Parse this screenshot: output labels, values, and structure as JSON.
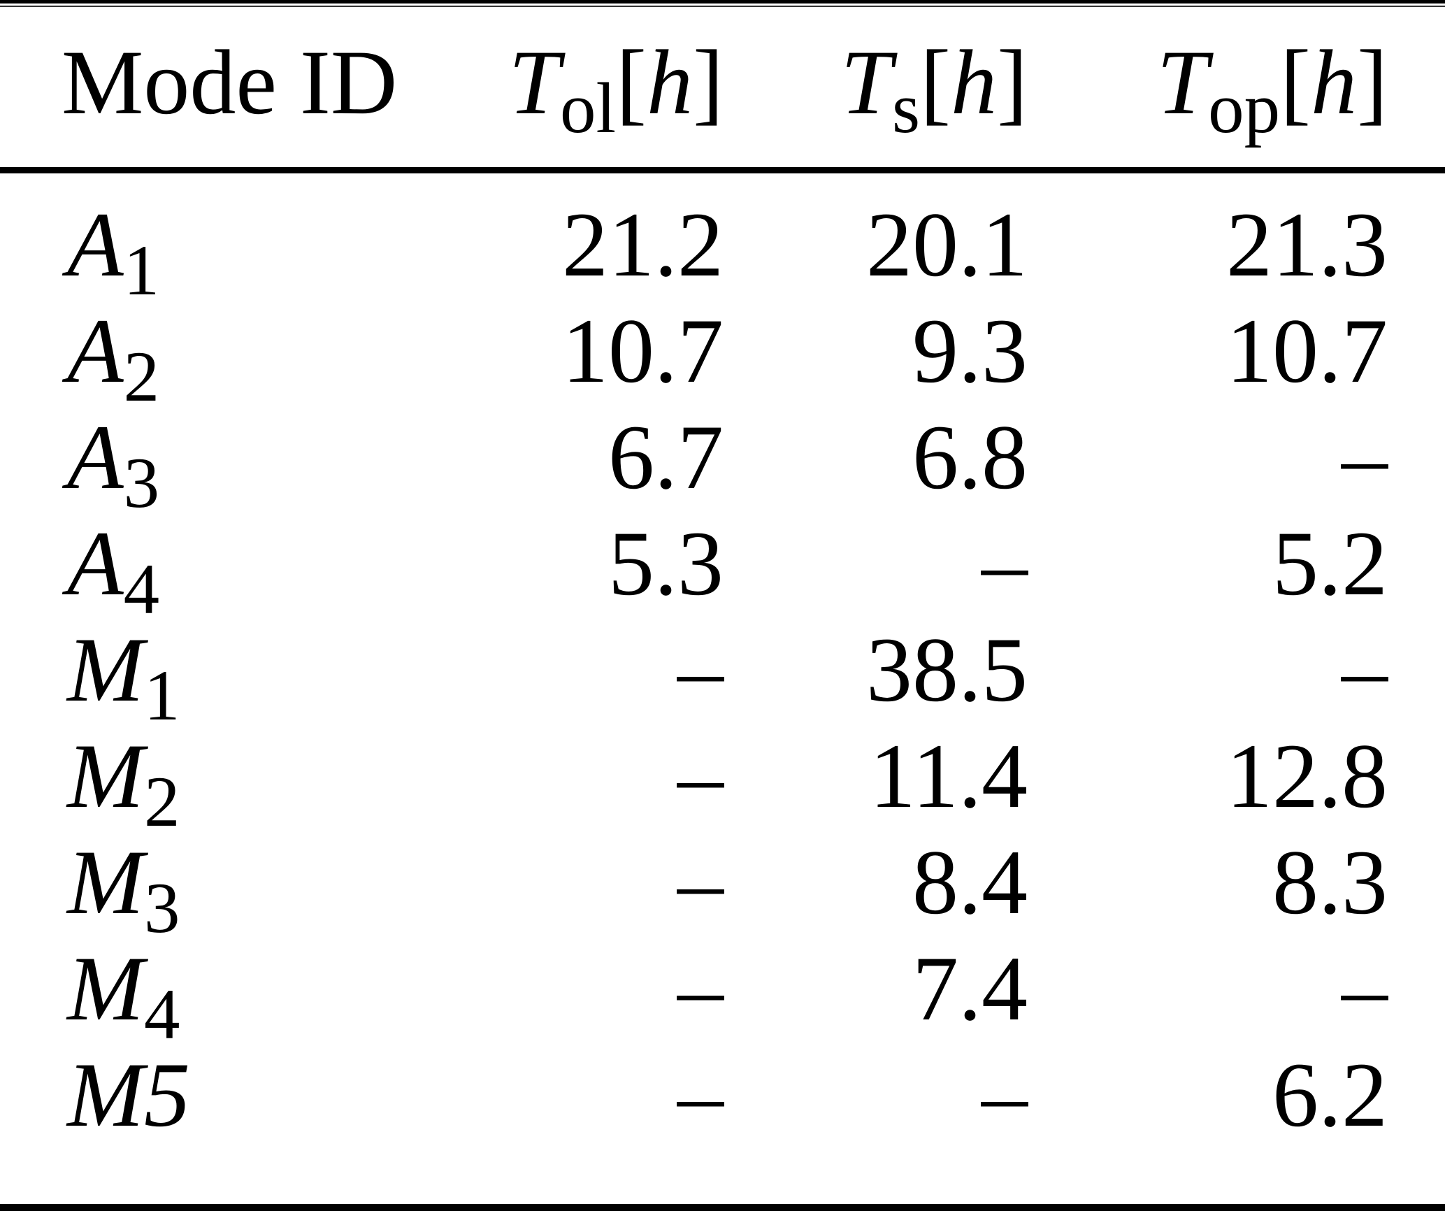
{
  "table": {
    "header": {
      "mode_id": "Mode ID",
      "columns": [
        {
          "base": "T",
          "sub": "ol",
          "open": "[",
          "unit": "h",
          "close": "]"
        },
        {
          "base": "T",
          "sub": "s",
          "open": "[",
          "unit": "h",
          "close": "]"
        },
        {
          "base": "T",
          "sub": "op",
          "open": "[",
          "unit": "h",
          "close": "]"
        }
      ]
    },
    "rows": [
      {
        "label": {
          "base": "A",
          "sub": "1"
        },
        "values": [
          "21.2",
          "20.1",
          "21.3"
        ]
      },
      {
        "label": {
          "base": "A",
          "sub": "2"
        },
        "values": [
          "10.7",
          "9.3",
          "10.7"
        ]
      },
      {
        "label": {
          "base": "A",
          "sub": "3"
        },
        "values": [
          "6.7",
          "6.8",
          "–"
        ]
      },
      {
        "label": {
          "base": "A",
          "sub": "4"
        },
        "values": [
          "5.3",
          "–",
          "5.2"
        ]
      },
      {
        "label": {
          "base": "M",
          "sub": "1"
        },
        "values": [
          "–",
          "38.5",
          "–"
        ]
      },
      {
        "label": {
          "base": "M",
          "sub": "2"
        },
        "values": [
          "–",
          "11.4",
          "12.8"
        ]
      },
      {
        "label": {
          "base": "M",
          "sub": "3"
        },
        "values": [
          "–",
          "8.4",
          "8.3"
        ]
      },
      {
        "label": {
          "base": "M",
          "sub": "4"
        },
        "values": [
          "–",
          "7.4",
          "–"
        ]
      },
      {
        "label": {
          "base": "M5",
          "sub": ""
        },
        "values": [
          "–",
          "–",
          "6.2"
        ]
      }
    ],
    "colors": {
      "text": "#000000",
      "background": "#ffffff",
      "rule": "#000000"
    }
  }
}
